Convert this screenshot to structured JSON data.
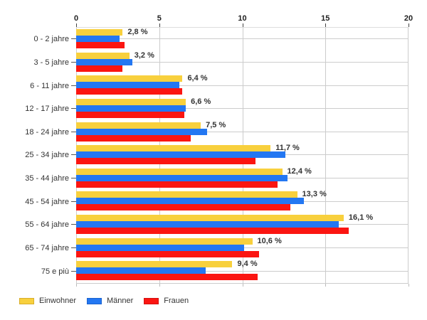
{
  "chart_data": {
    "type": "bar",
    "orientation": "horizontal",
    "title": "",
    "categories": [
      "0 - 2 jahre",
      "3 - 5 jahre",
      "6 - 11 jahre",
      "12 - 17 jahre",
      "18 - 24 jahre",
      "25 - 34 jahre",
      "35 - 44 jahre",
      "45 - 54 jahre",
      "55 - 64 jahre",
      "65 - 74 jahre",
      "75 e più"
    ],
    "series": [
      {
        "name": "Einwohner",
        "color": "#F8D03D",
        "border_color": "#D8AE2B",
        "values": [
          2.8,
          3.2,
          6.4,
          6.6,
          7.5,
          11.7,
          12.4,
          13.3,
          16.1,
          10.6,
          9.4
        ]
      },
      {
        "name": "Männer",
        "color": "#2377F2",
        "border_color": "#1B63CF",
        "values": [
          2.6,
          3.4,
          6.2,
          6.6,
          7.9,
          12.6,
          12.7,
          13.7,
          15.8,
          10.1,
          7.8
        ]
      },
      {
        "name": "Frauen",
        "color": "#FB1511",
        "border_color": "#D31110",
        "values": [
          2.9,
          2.8,
          6.4,
          6.5,
          6.9,
          10.8,
          12.1,
          12.9,
          16.4,
          11.0,
          10.9
        ]
      }
    ],
    "value_labels": [
      "2,8 %",
      "3,2 %",
      "6,4 %",
      "6,6 %",
      "7,5 %",
      "11,7 %",
      "12,4 %",
      "13,3 %",
      "16,1 %",
      "10,6 %",
      "9,4 %"
    ],
    "value_labels_series": "Einwohner",
    "x_ticks": [
      0,
      5,
      10,
      15,
      20
    ],
    "x_tick_labels": [
      "0",
      "5",
      "10",
      "15",
      "20"
    ],
    "xlim": [
      0,
      20
    ],
    "xlabel": "",
    "ylabel": "",
    "grid": true,
    "legend_position": "bottom-left",
    "colors": {
      "grid": "#cccccc",
      "axis_tick": "#444444",
      "axis_label": "#222222",
      "category_label": "#333333",
      "value_label": "#333333",
      "background": "#ffffff"
    }
  }
}
